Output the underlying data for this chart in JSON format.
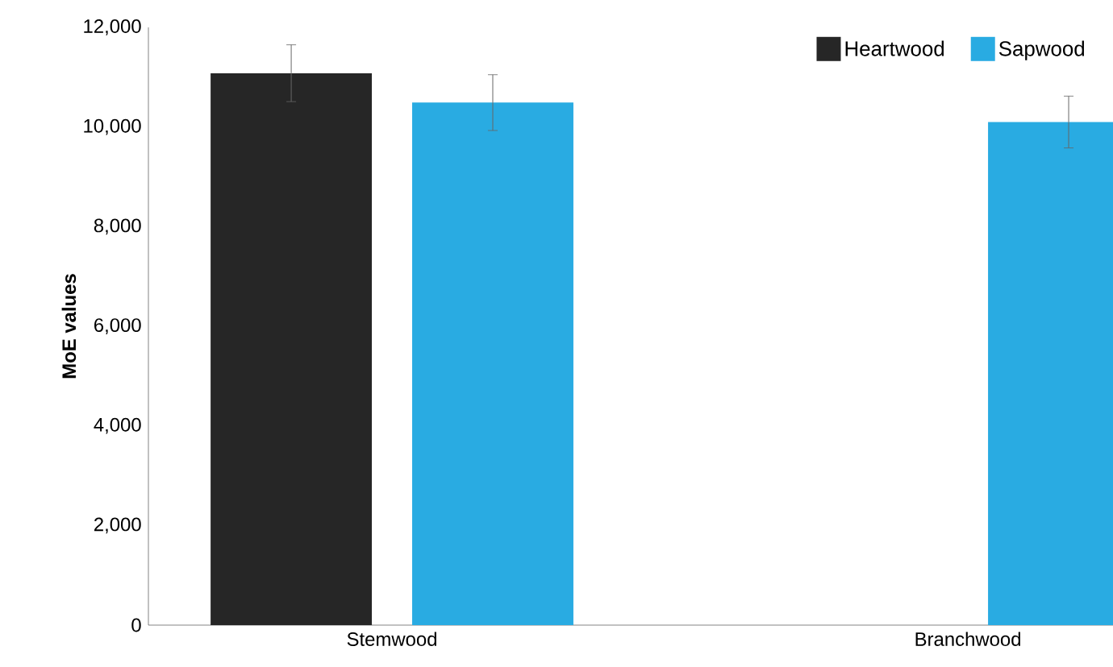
{
  "chart_data": {
    "type": "bar",
    "ylabel": "MoE values",
    "categories": [
      "Stemwood",
      "Branchwood"
    ],
    "series": [
      {
        "name": "Heartwood",
        "color": "#262626",
        "values": [
          11080,
          null
        ],
        "errors": [
          570,
          null
        ]
      },
      {
        "name": "Sapwood",
        "color": "#29abe2",
        "values": [
          10490,
          10100
        ],
        "errors": [
          560,
          520
        ]
      }
    ],
    "ylim": [
      0,
      12000
    ],
    "yticks": [
      {
        "value": 0,
        "label": "0"
      },
      {
        "value": 2000,
        "label": "2,000"
      },
      {
        "value": 4000,
        "label": "4,000"
      },
      {
        "value": 6000,
        "label": "6,000"
      },
      {
        "value": 8000,
        "label": "8,000"
      },
      {
        "value": 10000,
        "label": "10,000"
      },
      {
        "value": 12000,
        "label": "12,000"
      }
    ],
    "legend": "top right",
    "grid": false
  }
}
